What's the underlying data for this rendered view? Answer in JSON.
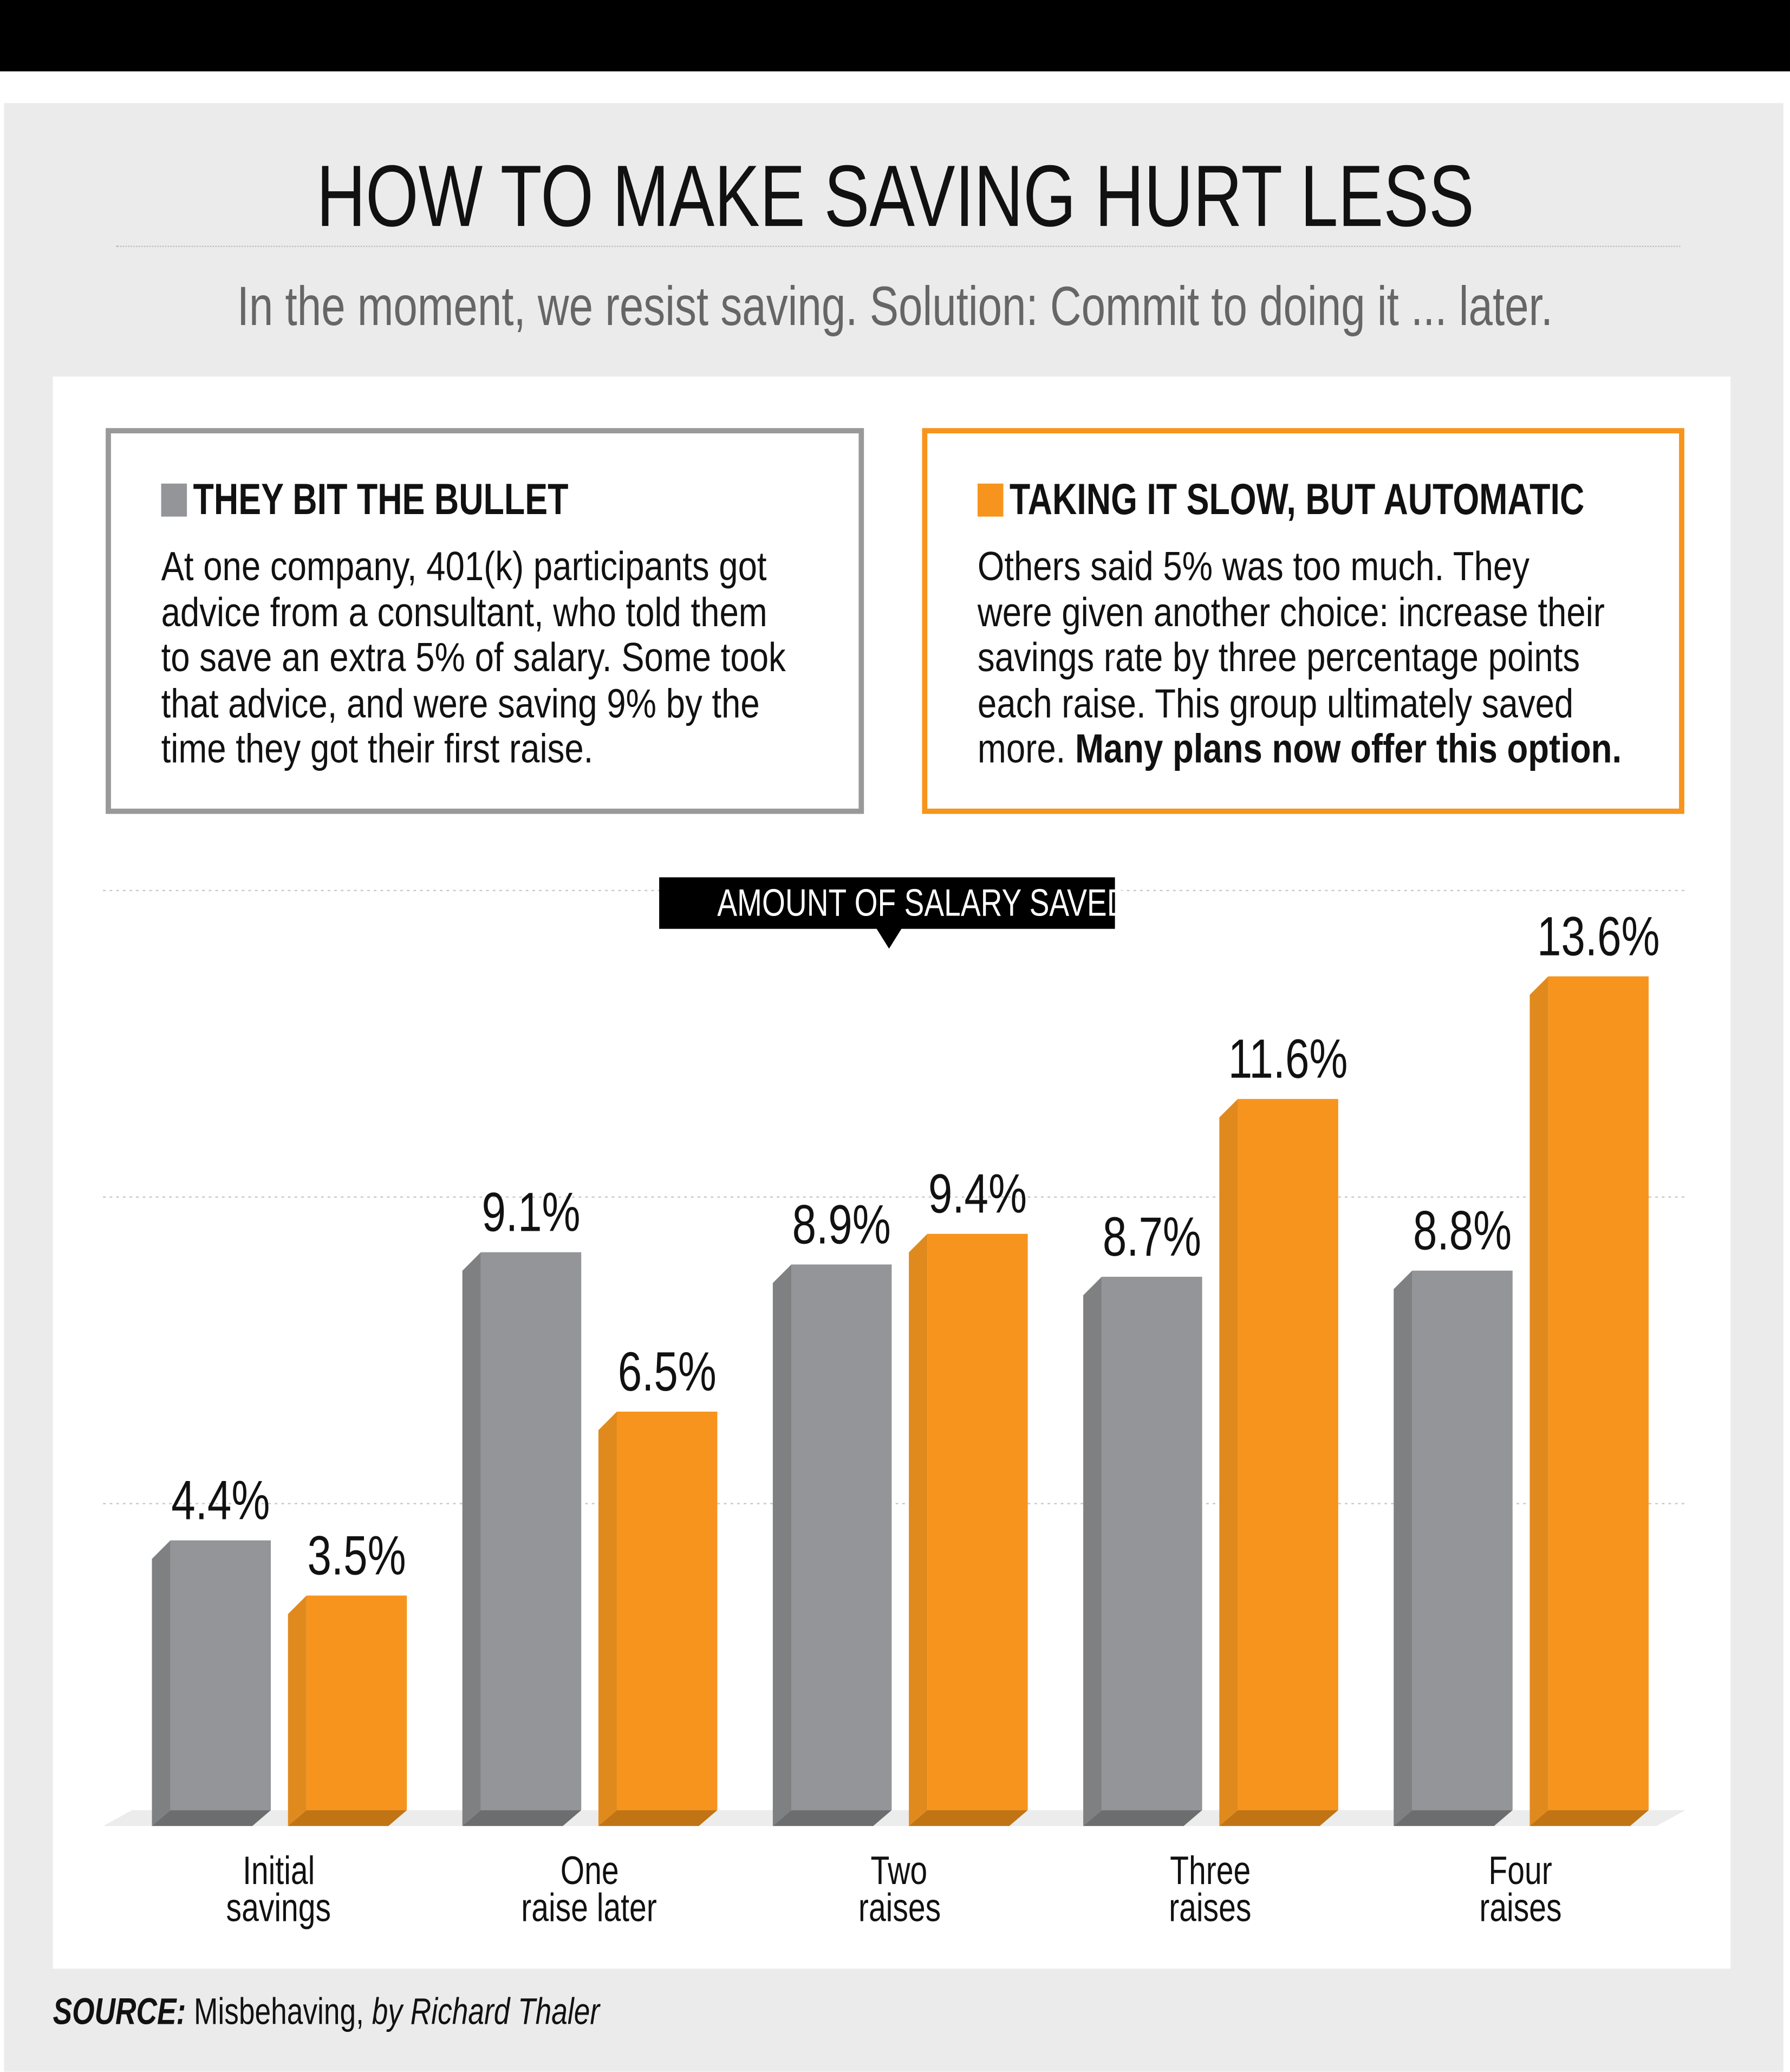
{
  "header": {
    "title": "HOW TO MAKE SAVING HURT LESS",
    "subtitle": "In the moment, we resist saving. Solution: Commit to doing it ... later."
  },
  "left_box": {
    "heading": "THEY BIT THE BULLET",
    "color": "#939598",
    "lines": [
      "At one company, 401(k) participants got",
      "advice from a consultant, who told them",
      "to save an extra 5% of salary. Some took",
      "that advice, and were saving 9% by the",
      "time they got their first raise."
    ]
  },
  "right_box": {
    "heading": "TAKING IT SLOW, BUT AUTOMATIC",
    "color": "#f7941d",
    "lines": [
      "Others said 5% was too much. They",
      "were given another choice: increase their",
      "savings rate by three percentage points",
      "each raise. This group ultimately saved"
    ],
    "last_line_plain": "more. ",
    "last_line_bold": "Many plans now offer this option."
  },
  "chart_data": {
    "type": "bar",
    "title": "AMOUNT OF SALARY SAVED",
    "categories": [
      [
        "Initial",
        "savings"
      ],
      [
        "One",
        "raise later"
      ],
      [
        "Two",
        "raises"
      ],
      [
        "Three",
        "raises"
      ],
      [
        "Four",
        "raises"
      ]
    ],
    "series": [
      {
        "name": "THEY BIT THE BULLET",
        "color": "#939598",
        "values": [
          4.4,
          9.1,
          8.9,
          8.7,
          8.8
        ]
      },
      {
        "name": "TAKING IT SLOW, BUT AUTOMATIC",
        "color": "#f7941d",
        "values": [
          3.5,
          6.5,
          9.4,
          11.6,
          13.6
        ]
      }
    ],
    "value_labels": [
      [
        "4.4%",
        "9.1%",
        "8.9%",
        "8.7%",
        "8.8%"
      ],
      [
        "3.5%",
        "6.5%",
        "9.4%",
        "11.6%",
        "13.6%"
      ]
    ],
    "ylim": [
      0,
      15
    ],
    "gridlines": [
      5,
      10,
      15
    ],
    "grid": true,
    "legend": "top (boxes)"
  },
  "source": {
    "label": "SOURCE:",
    "title": "Misbehaving,",
    "author": "by Richard Thaler"
  }
}
